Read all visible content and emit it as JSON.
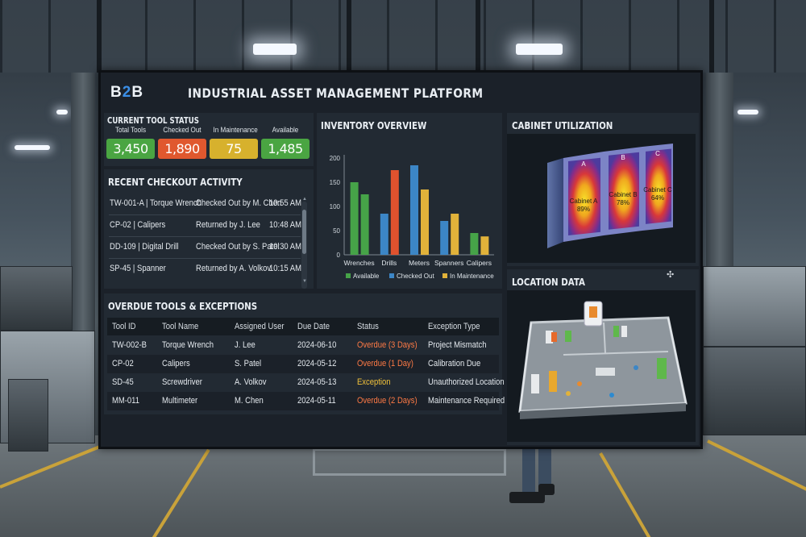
{
  "app": {
    "logo_b1": "B",
    "logo_2": "2",
    "logo_b2": "B",
    "title": "INDUSTRIAL ASSET MANAGEMENT PLATFORM"
  },
  "colors": {
    "total": "#4aa542",
    "checked_out": "#e0582e",
    "maintenance": "#d7b12d",
    "available": "#4aa542",
    "overdue_text": "#ff7a45",
    "exception_text": "#f2c23b",
    "bar_available": "#46a348",
    "bar_checked_out": "#3c86c6",
    "bar_maintenance": "#e1b23a",
    "bar_red": "#e0522e"
  },
  "tool_status": {
    "title": "CURRENT TOOL STATUS",
    "items": [
      {
        "label": "Total Tools",
        "value": "3,450"
      },
      {
        "label": "Checked Out",
        "value": "1,890"
      },
      {
        "label": "In Maintenance",
        "value": "75"
      },
      {
        "label": "Available",
        "value": "1,485"
      }
    ]
  },
  "activity": {
    "title": "RECENT CHECKOUT ACTIVITY",
    "rows": [
      {
        "tool": "TW-001-A | Torque Wrench",
        "action": "Checked Out by M. Chen",
        "time": "10:55 AM"
      },
      {
        "tool": "CP-02 | Calipers",
        "action": "Returned by J. Lee",
        "time": "10:48 AM"
      },
      {
        "tool": "DD-109 | Digital Drill",
        "action": "Checked Out by S. Patel",
        "time": "10:30 AM"
      },
      {
        "tool": "SP-45 | Spanner",
        "action": "Returned by A. Volkov",
        "time": "10:15 AM"
      }
    ]
  },
  "inventory": {
    "title": "INVENTORY OVERVIEW"
  },
  "chart_data": {
    "type": "bar",
    "categories": [
      "Wrenches",
      "Drills",
      "Meters",
      "Spanners",
      "Calipers"
    ],
    "series": [
      {
        "name": "Available",
        "values": [
          150,
          85,
          185,
          70,
          45
        ]
      },
      {
        "name": "Checked Out",
        "values": [
          125,
          175,
          135,
          85,
          38
        ]
      },
      {
        "name": "In Maintenance",
        "values": [
          0,
          0,
          0,
          0,
          0
        ]
      }
    ],
    "bars": [
      {
        "category": "Wrenches",
        "values": [
          150,
          125
        ],
        "colors": [
          "#46a348",
          "#46a348"
        ]
      },
      {
        "category": "Drills",
        "values": [
          85,
          175
        ],
        "colors": [
          "#3c86c6",
          "#e0522e"
        ]
      },
      {
        "category": "Meters",
        "values": [
          185,
          135
        ],
        "colors": [
          "#3c86c6",
          "#e1b23a"
        ]
      },
      {
        "category": "Spanners",
        "values": [
          70,
          85
        ],
        "colors": [
          "#3c86c6",
          "#e1b23a"
        ]
      },
      {
        "category": "Calipers",
        "values": [
          45,
          38
        ],
        "colors": [
          "#46a348",
          "#e1b23a"
        ]
      }
    ],
    "yticks": [
      "0",
      "50",
      "100",
      "150",
      "200"
    ],
    "ylim": [
      0,
      200
    ],
    "legend": [
      "Available",
      "Checked Out",
      "In Maintenance"
    ],
    "grid": false,
    "legend_position": "bottom"
  },
  "cabinet": {
    "title": "CABINET UTILIZATION",
    "units": [
      {
        "letter": "A",
        "name": "Cabinet A",
        "pct": "89%"
      },
      {
        "letter": "B",
        "name": "Cabinet B",
        "pct": "78%"
      },
      {
        "letter": "C",
        "name": "Cabinet C",
        "pct": "64%"
      }
    ]
  },
  "location": {
    "title": "LOCATION DATA"
  },
  "overdue": {
    "title": "OVERDUE TOOLS & EXCEPTIONS",
    "headers": [
      "Tool ID",
      "Tool Name",
      "Assigned User",
      "Due Date",
      "Status",
      "Exception Type"
    ],
    "rows": [
      {
        "id": "TW-002-B",
        "name": "Torque Wrench",
        "user": "J. Lee",
        "due": "2024-06-10",
        "status": "Overdue (3 Days)",
        "type": "Project Mismatch",
        "kind": "overdue"
      },
      {
        "id": "CP-02",
        "name": "Calipers",
        "user": "S. Patel",
        "due": "2024-05-12",
        "status": "Overdue (1 Day)",
        "type": "Calibration Due",
        "kind": "overdue"
      },
      {
        "id": "SD-45",
        "name": "Screwdriver",
        "user": "A. Volkov",
        "due": "2024-05-13",
        "status": "Exception",
        "type": "Unauthorized Location",
        "kind": "exception"
      },
      {
        "id": "MM-011",
        "name": "Multimeter",
        "user": "M. Chen",
        "due": "2024-05-11",
        "status": "Overdue (2 Days)",
        "type": "Maintenance Required",
        "kind": "overdue"
      }
    ]
  }
}
